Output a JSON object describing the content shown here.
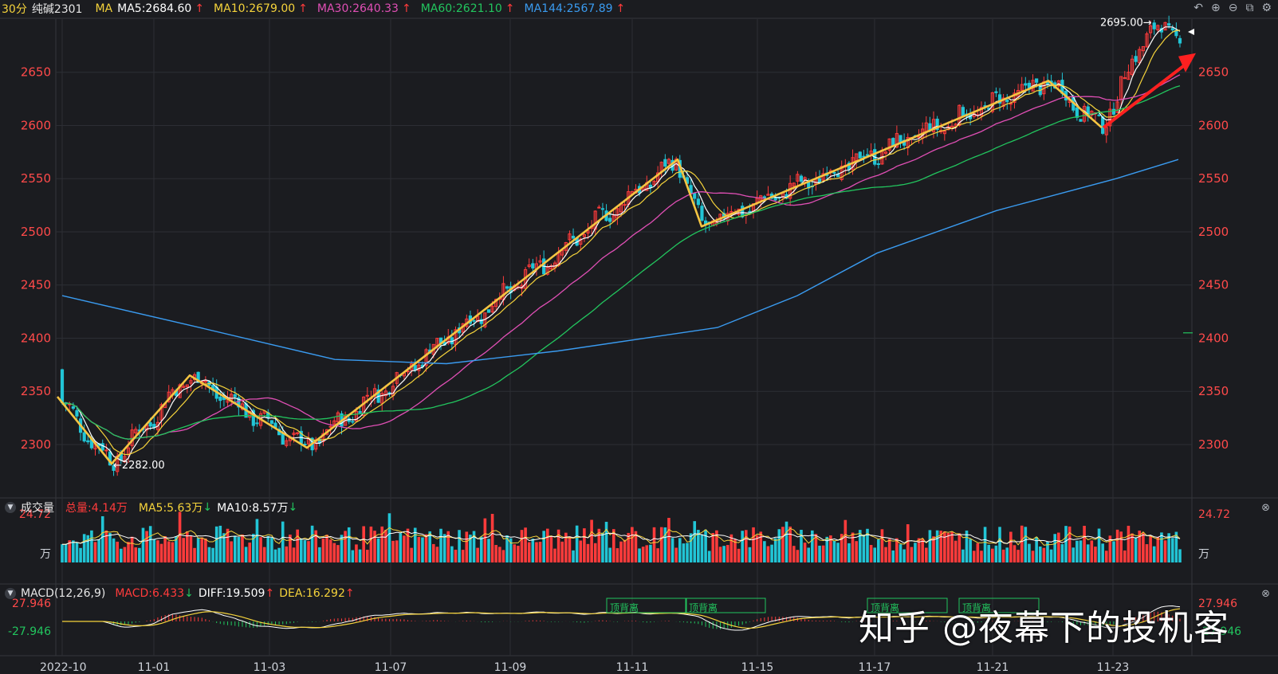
{
  "header": {
    "period": "30分",
    "symbol": "纯碱2301",
    "ma_label": "MA",
    "ma": [
      {
        "text": "MA5:2684.60",
        "arrow": "↑",
        "color": "#ffffff"
      },
      {
        "text": "MA10:2679.00",
        "arrow": "↑",
        "color": "#f5d33b"
      },
      {
        "text": "MA30:2640.33",
        "arrow": "↑",
        "color": "#e04fb5"
      },
      {
        "text": "MA60:2621.10",
        "arrow": "↑",
        "color": "#22c55e"
      },
      {
        "text": "MA144:2567.89",
        "arrow": "↑",
        "color": "#3a9bf0"
      }
    ],
    "tool_icons": [
      "undo-icon",
      "zoom-in-icon",
      "zoom-out-icon",
      "layout-icon",
      "settings-icon"
    ]
  },
  "volume_header": {
    "title": "成交量",
    "total": "总量:4.14万",
    "ma5": "MA5:5.63万",
    "ma5_arrow": "↓",
    "ma10": "MA10:8.57万",
    "ma10_arrow": "↓"
  },
  "macd_header": {
    "title": "MACD(12,26,9)",
    "macd": "MACD:6.433",
    "macd_arrow": "↓",
    "diff": "DIFF:19.509",
    "diff_arrow": "↑",
    "dea": "DEA:16.292",
    "dea_arrow": "↑"
  },
  "annotations": {
    "high_label": "2695.00→",
    "low_label": "←2282.00",
    "divergence_labels": [
      "顶背离",
      "顶背离",
      "顶背离",
      "顶背离"
    ]
  },
  "watermark": "知乎 @夜幕下的投机客",
  "colors": {
    "up": "#ff3b3b",
    "down": "#22c5d6",
    "ma5": "#ffffff",
    "ma10": "#f5d33b",
    "ma30": "#e04fb5",
    "ma60": "#22c55e",
    "ma144": "#3a9bf0",
    "trend": "#f5c542",
    "arrow": "#ff2020"
  },
  "chart_data": [
    {
      "type": "line",
      "subtype": "candlestick-with-moving-averages",
      "y_axis_ticks": [
        2300,
        2350,
        2400,
        2450,
        2500,
        2550,
        2600,
        2650
      ],
      "ylim": [
        2270,
        2700
      ],
      "x_ticks": [
        "2022-10",
        "11-01",
        "11-03",
        "11-07",
        "11-09",
        "11-11",
        "11-15",
        "11-17",
        "11-21",
        "11-23"
      ],
      "high": 2695.0,
      "low": 2282.0,
      "series": [
        {
          "name": "MA5",
          "last": 2684.6
        },
        {
          "name": "MA10",
          "last": 2679.0
        },
        {
          "name": "MA30",
          "last": 2640.33
        },
        {
          "name": "MA60",
          "last": 2621.1
        },
        {
          "name": "MA144",
          "last": 2567.89
        }
      ],
      "trend_lines": [
        [
          2345,
          2282,
          2365,
          2297,
          2568,
          2505,
          2642,
          2598
        ]
      ],
      "right_marker": 2405
    },
    {
      "type": "bar",
      "subtype": "volume",
      "max_label": "24.72",
      "unit": "万"
    },
    {
      "type": "bar",
      "subtype": "macd",
      "upper_label": "27.946",
      "lower_label": "-27.946"
    }
  ]
}
